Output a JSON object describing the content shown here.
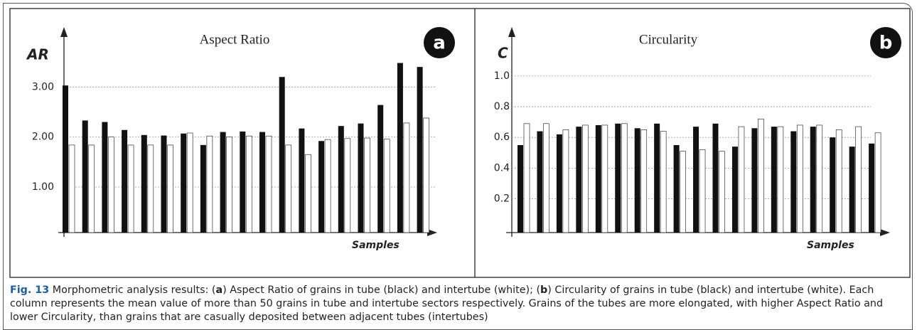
{
  "chart_data": [
    {
      "type": "bar",
      "title": "Aspect Ratio",
      "ylabel": "AR",
      "xlabel": "Samples",
      "badge": "a",
      "ylim": [
        0.09,
        4.17
      ],
      "yticks": [
        {
          "value": 1,
          "label": "1.00"
        },
        {
          "value": 2,
          "label": "2.00"
        },
        {
          "value": 3,
          "label": "3.00"
        }
      ],
      "grid": true,
      "series": [
        {
          "color": "#111111",
          "values": [
            3.03,
            2.33,
            2.3,
            2.14,
            2.04,
            2.03,
            2.07,
            1.84,
            2.1,
            2.11,
            2.1,
            3.2,
            2.17,
            1.92,
            2.22,
            2.27,
            2.64,
            3.48,
            3.4
          ]
        },
        {
          "color": "#ffffff",
          "values": [
            1.84,
            1.84,
            2.0,
            1.84,
            1.84,
            1.84,
            2.08,
            2.02,
            2.0,
            2.02,
            2.02,
            1.84,
            1.65,
            1.95,
            1.97,
            1.98,
            1.96,
            2.28,
            2.38
          ]
        }
      ]
    },
    {
      "type": "bar",
      "title": "Circularity",
      "ylabel": "C",
      "xlabel": "Samples",
      "badge": "b",
      "ylim": [
        -0.02,
        1.31
      ],
      "yticks": [
        0.2,
        0.4,
        0.6,
        0.8,
        {
          "value": 1,
          "label": "1.0"
        }
      ],
      "grid": true,
      "series": [
        {
          "color": "#111111",
          "values": [
            0.55,
            0.64,
            0.62,
            0.67,
            0.68,
            0.69,
            0.66,
            0.69,
            0.55,
            0.67,
            0.69,
            0.54,
            0.66,
            0.67,
            0.64,
            0.67,
            0.6,
            0.54,
            0.56
          ]
        },
        {
          "color": "#ffffff",
          "values": [
            0.69,
            0.69,
            0.65,
            0.68,
            0.68,
            0.69,
            0.65,
            0.64,
            0.51,
            0.52,
            0.51,
            0.67,
            0.72,
            0.67,
            0.68,
            0.68,
            0.65,
            0.67,
            0.63
          ]
        }
      ]
    }
  ],
  "caption": [
    "Fig. 13",
    " Morphometric analysis results: (",
    "a",
    ") Aspect Ratio of grains in tube (black) and intertube (white); (",
    "b",
    ") Circularity of grains in tube (black) and intertube (white). Each column represents the mean value of more than 50 grains in tube and intertube sectors respectively. Grains of the tubes are more elongated, with higher Aspect Ratio and lower Circularity, than grains that are casually deposited between adjacent tubes (intertubes)"
  ]
}
